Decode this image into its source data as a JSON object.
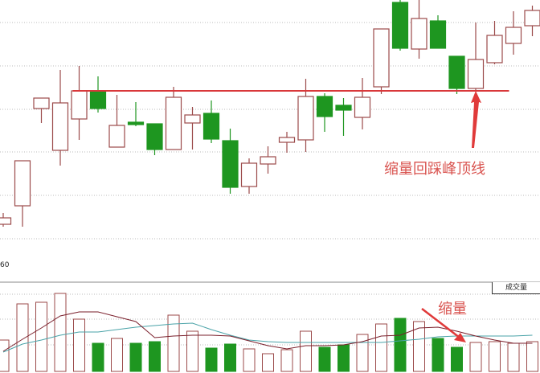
{
  "chart_data": [
    {
      "type": "candlestick",
      "title": "",
      "grid": true,
      "colors": {
        "up": "#9b4a4a",
        "down": "#1e9620",
        "support_line": "#d9383a",
        "annotation": "#d9534f"
      },
      "axis_label_fragment": "60",
      "candles": [
        {
          "o": 2.1,
          "h": 3.5,
          "l": 1.8,
          "c": 2.9
        },
        {
          "o": 4.4,
          "h": 10.0,
          "l": 1.8,
          "c": 10.0
        },
        {
          "o": 16.5,
          "h": 17.8,
          "l": 14.7,
          "c": 17.8
        },
        {
          "o": 11.3,
          "h": 21.3,
          "l": 9.4,
          "c": 17.2
        },
        {
          "o": 15.2,
          "h": 21.8,
          "l": 12.6,
          "c": 18.7
        },
        {
          "o": 18.6,
          "h": 20.5,
          "l": 16.0,
          "c": 16.5
        },
        {
          "o": 11.7,
          "h": 18.2,
          "l": 11.7,
          "c": 14.4
        },
        {
          "o": 14.8,
          "h": 17.3,
          "l": 14.3,
          "c": 14.5
        },
        {
          "o": 14.6,
          "h": 14.6,
          "l": 10.7,
          "c": 11.4
        },
        {
          "o": 11.4,
          "h": 19.2,
          "l": 11.4,
          "c": 17.9
        },
        {
          "o": 14.7,
          "h": 16.7,
          "l": 11.4,
          "c": 15.7
        },
        {
          "o": 15.9,
          "h": 17.5,
          "l": 12.2,
          "c": 12.7
        },
        {
          "o": 12.5,
          "h": 14.0,
          "l": 5.9,
          "c": 6.7
        },
        {
          "o": 6.8,
          "h": 10.3,
          "l": 5.9,
          "c": 9.7
        },
        {
          "o": 9.6,
          "h": 11.8,
          "l": 8.4,
          "c": 10.5
        },
        {
          "o": 12.3,
          "h": 13.6,
          "l": 11.0,
          "c": 12.9
        },
        {
          "o": 12.6,
          "h": 20.2,
          "l": 11.1,
          "c": 18.0
        },
        {
          "o": 18.0,
          "h": 18.4,
          "l": 13.6,
          "c": 15.5
        },
        {
          "o": 16.9,
          "h": 17.8,
          "l": 13.1,
          "c": 16.3
        },
        {
          "o": 15.4,
          "h": 20.3,
          "l": 13.9,
          "c": 17.9
        },
        {
          "o": 19.2,
          "h": 26.4,
          "l": 18.3,
          "c": 26.4
        },
        {
          "o": 29.7,
          "h": 30.0,
          "l": 23.7,
          "c": 24.0
        },
        {
          "o": 23.9,
          "h": 30.0,
          "l": 22.7,
          "c": 27.7
        },
        {
          "o": 27.4,
          "h": 28.1,
          "l": 24.0,
          "c": 24.0
        },
        {
          "o": 23.0,
          "h": 23.0,
          "l": 18.3,
          "c": 19.0
        },
        {
          "o": 19.0,
          "h": 27.2,
          "l": 18.8,
          "c": 22.6
        },
        {
          "o": 22.2,
          "h": 27.4,
          "l": 22.0,
          "c": 25.6
        },
        {
          "o": 24.6,
          "h": 28.6,
          "l": 23.2,
          "c": 26.6
        },
        {
          "o": 26.8,
          "h": 29.3,
          "l": 25.5,
          "c": 28.7
        }
      ],
      "support_line": {
        "value": 18.7,
        "from_index": 4,
        "to_index": 26
      },
      "annotation": {
        "text": "缩量回踩峰顶线",
        "points_to_index": 25
      }
    },
    {
      "type": "bar",
      "label": "成交量",
      "grid": true,
      "volumes": [
        39,
        84,
        86,
        97,
        65,
        35,
        41,
        35,
        37,
        70,
        50,
        29,
        34,
        28,
        22,
        27,
        50,
        30,
        33,
        46,
        59,
        66,
        62,
        41,
        30,
        36,
        37,
        35,
        37
      ],
      "ma_short": [
        25,
        40,
        54,
        69,
        74,
        74,
        68,
        62,
        42,
        44,
        45,
        45,
        44,
        38,
        32,
        28,
        32,
        32,
        33,
        37,
        44,
        45,
        54,
        55,
        50,
        44,
        39,
        35,
        35
      ],
      "ma_long": [
        24,
        34,
        39,
        45,
        49,
        49,
        52,
        55,
        57,
        59,
        60,
        52,
        45,
        39,
        37,
        36,
        36,
        36,
        36,
        36,
        36,
        38,
        40,
        43,
        44,
        44,
        44,
        44,
        45
      ],
      "colors": {
        "ma_short": "#7a1f2b",
        "ma_long": "#4aa3a8"
      },
      "annotation": {
        "text": "缩量",
        "points_to_index": 24
      }
    }
  ]
}
